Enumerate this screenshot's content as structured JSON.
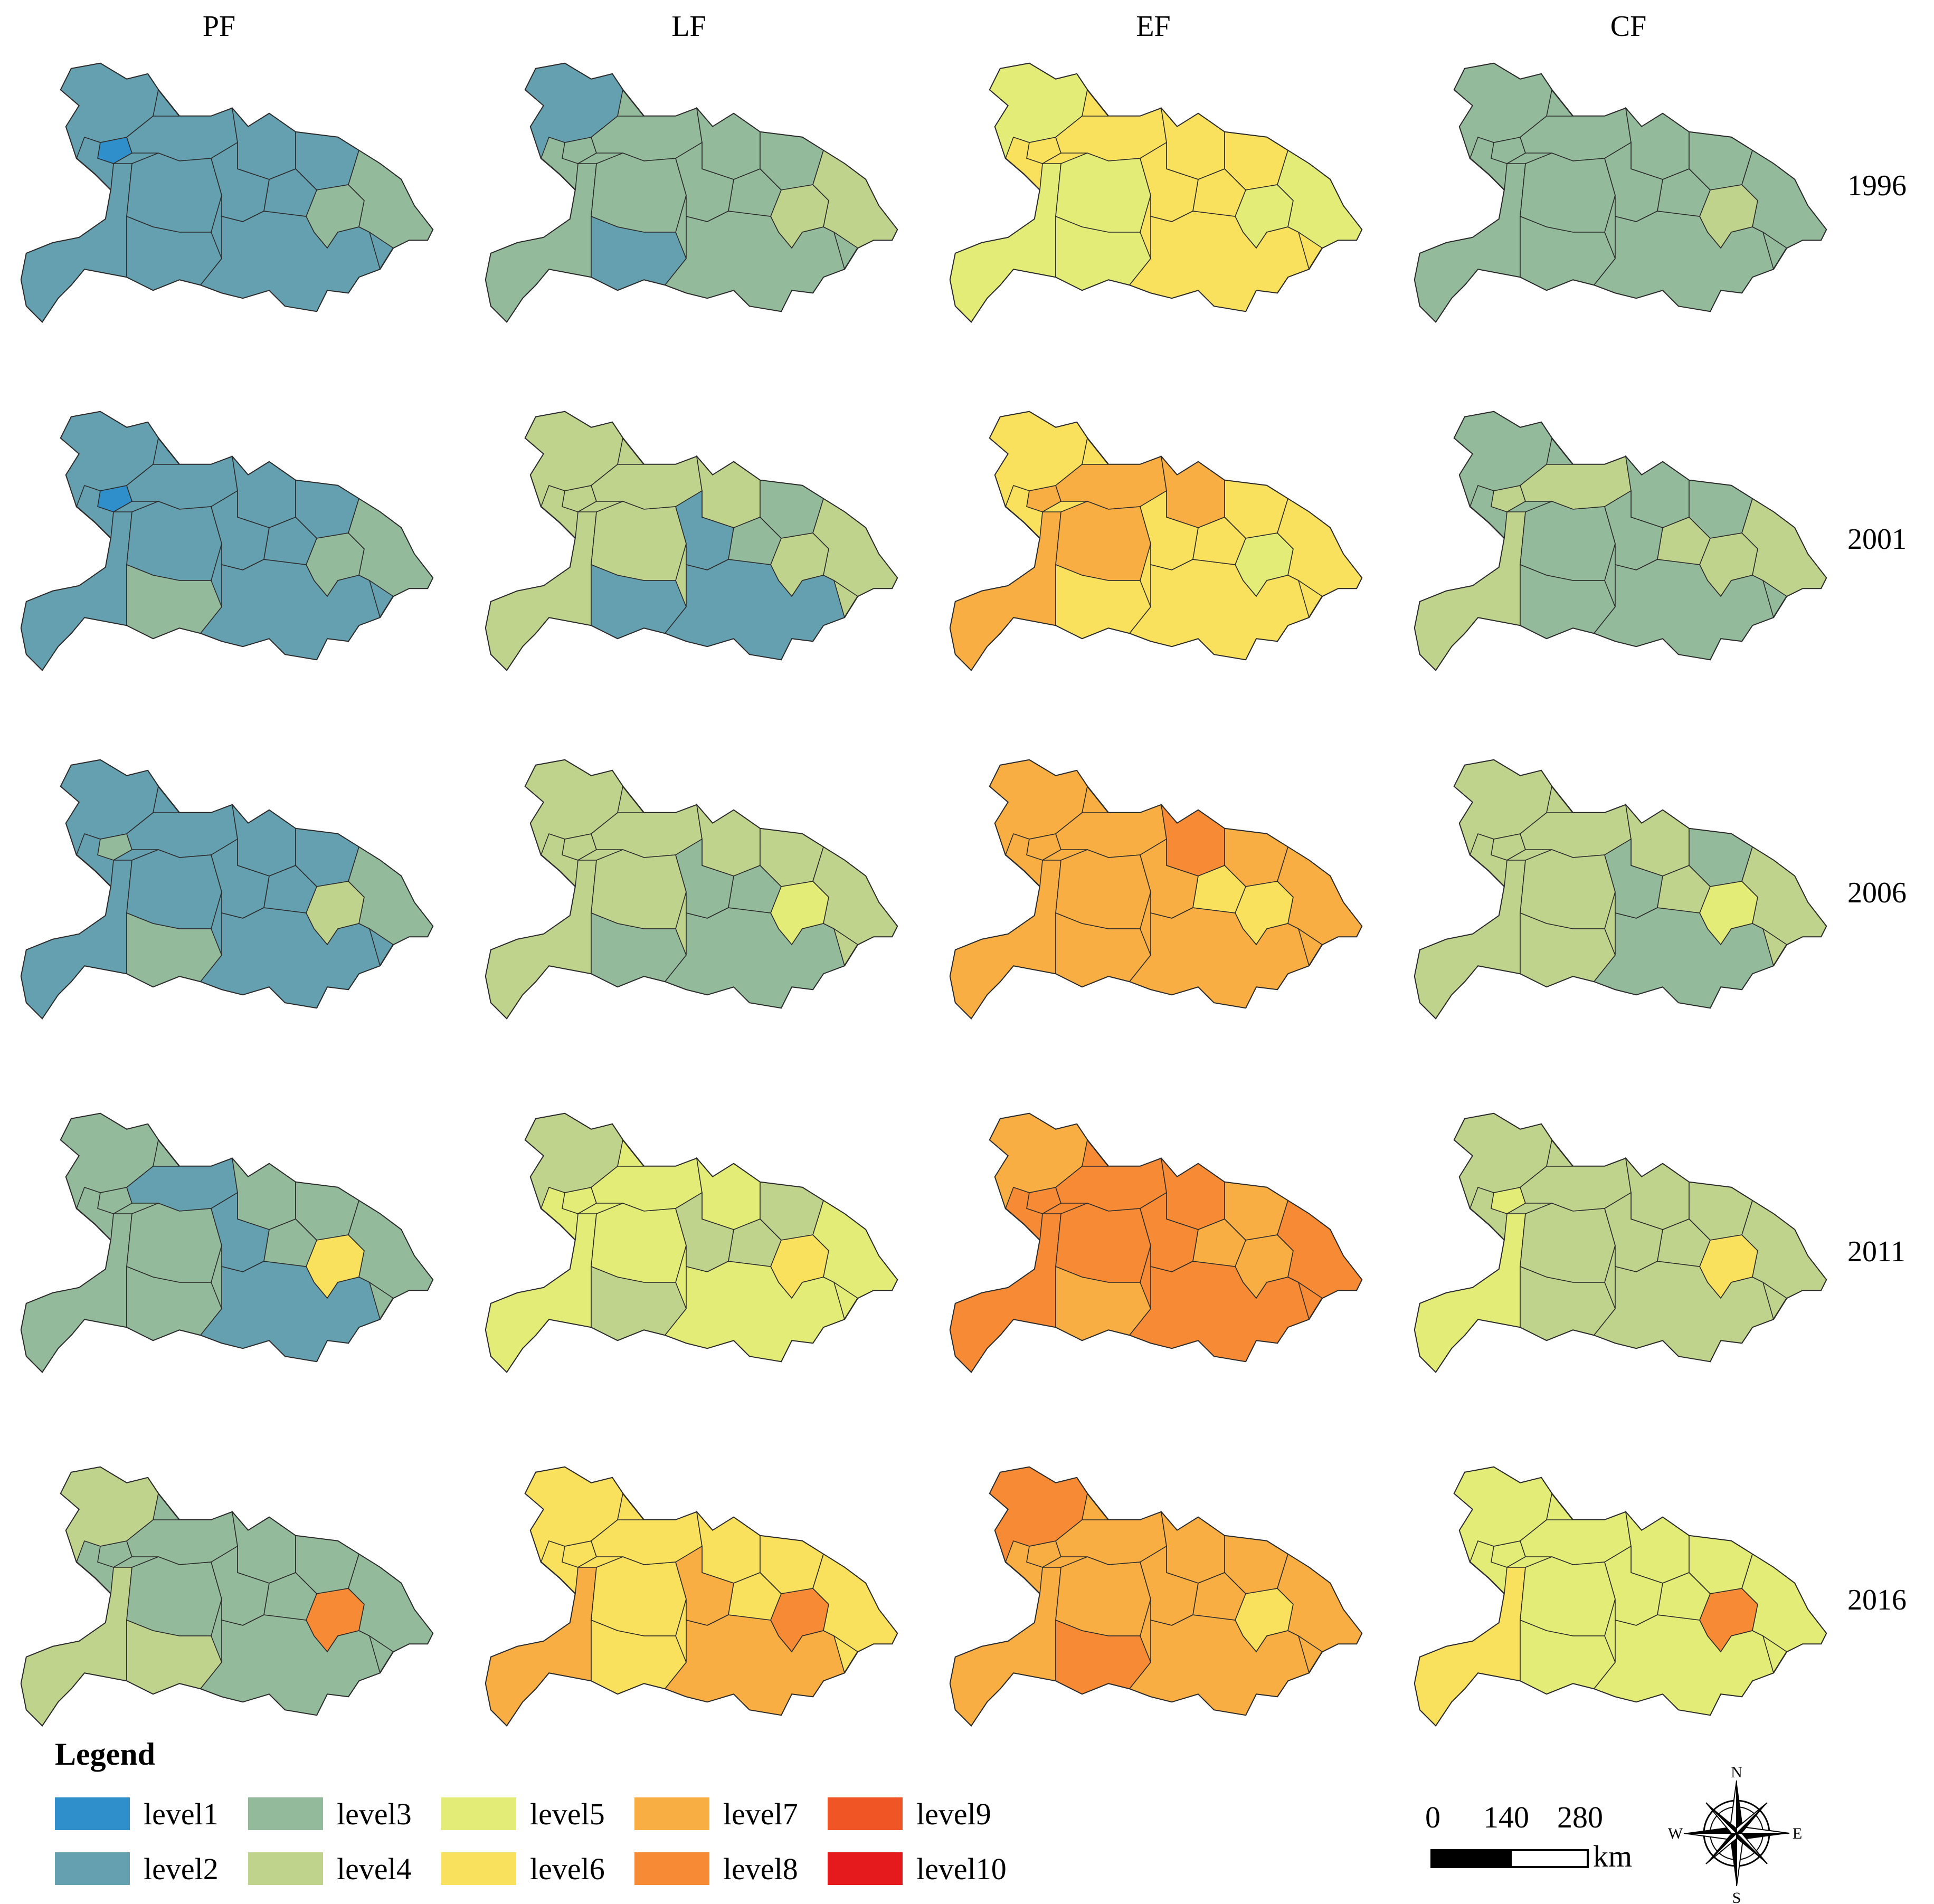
{
  "columns": [
    "PF",
    "LF",
    "EF",
    "CF"
  ],
  "years": [
    "1996",
    "2001",
    "2006",
    "2011",
    "2016"
  ],
  "legend": {
    "title": "Legend",
    "items": [
      {
        "label": "level1",
        "color": "#2f8fcb"
      },
      {
        "label": "level2",
        "color": "#64a0b0"
      },
      {
        "label": "level3",
        "color": "#93bb9b"
      },
      {
        "label": "level4",
        "color": "#c0d38c"
      },
      {
        "label": "level5",
        "color": "#e4ec78"
      },
      {
        "label": "level6",
        "color": "#f9e05d"
      },
      {
        "label": "level7",
        "color": "#f8ae43"
      },
      {
        "label": "level8",
        "color": "#f68a35"
      },
      {
        "label": "level9",
        "color": "#ef5525"
      },
      {
        "label": "level10",
        "color": "#e41a1c"
      }
    ]
  },
  "maps": {
    "1996": {
      "PF": {
        "base": 2,
        "regions": [
          1,
          2,
          2,
          2,
          2,
          2,
          2,
          2,
          2,
          3,
          3,
          2,
          2
        ]
      },
      "LF": {
        "base": 3,
        "regions": [
          3,
          2,
          3,
          3,
          3,
          3,
          3,
          3,
          2,
          4,
          4,
          3,
          3
        ]
      },
      "EF": {
        "base": 6,
        "regions": [
          6,
          5,
          5,
          6,
          6,
          6,
          5,
          6,
          5,
          5,
          5,
          6,
          6
        ]
      },
      "CF": {
        "base": 3,
        "regions": [
          3,
          3,
          3,
          3,
          3,
          3,
          3,
          3,
          3,
          4,
          3,
          3,
          3
        ]
      }
    },
    "2001": {
      "PF": {
        "base": 2,
        "regions": [
          1,
          2,
          2,
          2,
          2,
          2,
          2,
          2,
          3,
          3,
          3,
          2,
          2
        ]
      },
      "LF": {
        "base": 4,
        "regions": [
          4,
          4,
          4,
          4,
          4,
          3,
          4,
          2,
          2,
          4,
          4,
          2,
          3
        ]
      },
      "EF": {
        "base": 6,
        "regions": [
          7,
          6,
          7,
          7,
          7,
          6,
          7,
          6,
          6,
          5,
          6,
          6,
          6
        ]
      },
      "CF": {
        "base": 3,
        "regions": [
          4,
          3,
          4,
          4,
          3,
          3,
          3,
          3,
          3,
          4,
          4,
          3,
          4
        ]
      }
    },
    "2006": {
      "PF": {
        "base": 2,
        "regions": [
          3,
          2,
          2,
          2,
          2,
          2,
          2,
          2,
          3,
          4,
          3,
          2,
          2
        ]
      },
      "LF": {
        "base": 4,
        "regions": [
          4,
          4,
          4,
          4,
          4,
          4,
          4,
          3,
          3,
          5,
          4,
          3,
          3
        ]
      },
      "EF": {
        "base": 7,
        "regions": [
          7,
          7,
          7,
          7,
          8,
          7,
          7,
          7,
          7,
          6,
          7,
          7,
          6
        ]
      },
      "CF": {
        "base": 4,
        "regions": [
          4,
          4,
          4,
          4,
          4,
          3,
          4,
          3,
          4,
          5,
          4,
          3,
          4
        ]
      }
    },
    "2011": {
      "PF": {
        "base": 3,
        "regions": [
          3,
          3,
          3,
          2,
          3,
          3,
          3,
          2,
          3,
          6,
          3,
          2,
          3
        ]
      },
      "LF": {
        "base": 5,
        "regions": [
          5,
          4,
          5,
          5,
          5,
          4,
          5,
          4,
          4,
          6,
          5,
          5,
          4
        ]
      },
      "EF": {
        "base": 8,
        "regions": [
          8,
          7,
          8,
          8,
          8,
          7,
          8,
          8,
          7,
          7,
          8,
          8,
          7
        ]
      },
      "CF": {
        "base": 4,
        "regions": [
          5,
          4,
          5,
          4,
          4,
          4,
          4,
          4,
          4,
          6,
          4,
          4,
          4
        ]
      }
    },
    "2016": {
      "PF": {
        "base": 3,
        "regions": [
          3,
          4,
          4,
          3,
          3,
          3,
          3,
          3,
          4,
          8,
          3,
          3,
          3
        ]
      },
      "LF": {
        "base": 6,
        "regions": [
          6,
          6,
          7,
          6,
          6,
          6,
          6,
          7,
          6,
          8,
          6,
          7,
          6
        ]
      },
      "EF": {
        "base": 7,
        "regions": [
          7,
          8,
          7,
          7,
          7,
          7,
          7,
          7,
          8,
          6,
          7,
          7,
          7
        ]
      },
      "CF": {
        "base": 5,
        "regions": [
          5,
          5,
          6,
          5,
          5,
          5,
          5,
          5,
          5,
          8,
          5,
          5,
          5
        ]
      }
    }
  },
  "scale_bar": {
    "ticks": [
      "0",
      "140",
      "280"
    ],
    "unit": "km"
  },
  "compass": {
    "n": "N",
    "s": "S",
    "e": "E",
    "w": "W"
  }
}
